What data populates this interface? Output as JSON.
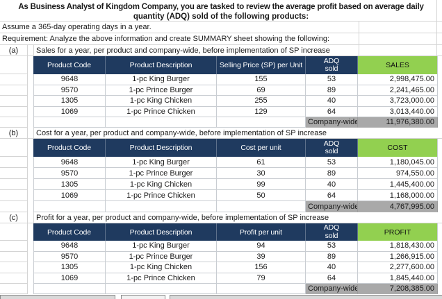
{
  "sheet": {
    "title_line1": "As Business Analyst of Kingdom Company, you are tasked to review the average profit based on average daily",
    "title_line2": "quantity (ADQ) sold of the following products:",
    "assumption": "Assume a 365-day operating days in a year.",
    "requirement": "Requirement: Analyze the above information and create SUMMARY sheet showing the following:"
  },
  "colors": {
    "header_bg": "#1F3A5F",
    "header_text": "#FFFFFF",
    "accent_green": "#92D050",
    "total_bg": "#A9A9A9",
    "gridline": "#D4D4D4",
    "table_border": "#C9CDD2"
  },
  "sections": [
    {
      "label": "(a)",
      "caption": "Sales for a year, per product and company-wide, before implementation of SP increase",
      "headers": [
        "Product Code",
        "Product Description",
        "Selling Price (SP) per Unit",
        "ADQ\nsold",
        "SALES"
      ],
      "rows": [
        [
          "9648",
          "1-pc King Burger",
          "155",
          "53",
          "2,998,475.00"
        ],
        [
          "9570",
          "1-pc Prince Burger",
          "69",
          "89",
          "2,241,465.00"
        ],
        [
          "1305",
          "1-pc King Chicken",
          "255",
          "40",
          "3,723,000.00"
        ],
        [
          "1069",
          "1-pc Prince Chicken",
          "129",
          "64",
          "3,013,440.00"
        ]
      ],
      "total_label": "Company-wide",
      "total_value": "11,976,380.00"
    },
    {
      "label": "(b)",
      "caption": "Cost for a year, per product and company-wide, before implementation of SP increase",
      "headers": [
        "Product Code",
        "Product Description",
        "Cost per unit",
        "ADQ\nsold",
        "COST"
      ],
      "rows": [
        [
          "9648",
          "1-pc King Burger",
          "61",
          "53",
          "1,180,045.00"
        ],
        [
          "9570",
          "1-pc Prince Burger",
          "30",
          "89",
          "974,550.00"
        ],
        [
          "1305",
          "1-pc King Chicken",
          "99",
          "40",
          "1,445,400.00"
        ],
        [
          "1069",
          "1-pc Prince Chicken",
          "50",
          "64",
          "1,168,000.00"
        ]
      ],
      "total_label": "Company-wide",
      "total_value": "4,767,995.00"
    },
    {
      "label": "(c)",
      "caption": "Profit for a year, per product and company-wide, before implementation of SP increase",
      "headers": [
        "Product Code",
        "Product Description",
        "Profit per unit",
        "ADQ\nsold",
        "PROFIT"
      ],
      "rows": [
        [
          "9648",
          "1-pc King Burger",
          "94",
          "53",
          "1,818,430.00"
        ],
        [
          "9570",
          "1-pc Prince Burger",
          "39",
          "89",
          "1,266,915.00"
        ],
        [
          "1305",
          "1-pc King Chicken",
          "156",
          "40",
          "2,277,600.00"
        ],
        [
          "1069",
          "1-pc Prince Chicken",
          "79",
          "64",
          "1,845,440.00"
        ]
      ],
      "total_label": "Company-wide",
      "total_value": "7,208,385.00"
    }
  ]
}
